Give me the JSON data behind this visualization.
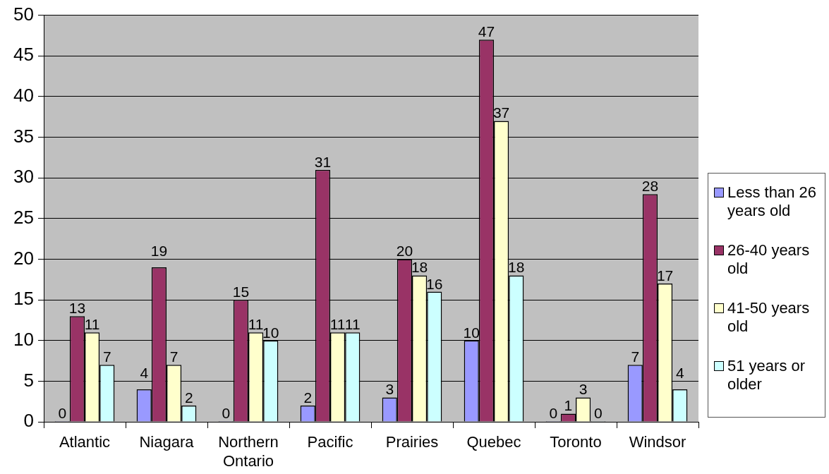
{
  "chart_data": {
    "type": "bar",
    "categories": [
      "Atlantic",
      "Niagara",
      "Northern Ontario",
      "Pacific",
      "Prairies",
      "Quebec",
      "Toronto",
      "Windsor"
    ],
    "series": [
      {
        "name": "Less than 26 years old",
        "color": "#9999ff",
        "values": [
          0,
          4,
          0,
          2,
          3,
          10,
          0,
          7
        ]
      },
      {
        "name": "26-40 years old",
        "color": "#993366",
        "values": [
          13,
          19,
          15,
          31,
          20,
          47,
          1,
          28
        ]
      },
      {
        "name": "41-50 years old",
        "color": "#ffffcc",
        "values": [
          11,
          7,
          11,
          11,
          18,
          37,
          3,
          17
        ]
      },
      {
        "name": "51 years or older",
        "color": "#ccffff",
        "values": [
          7,
          2,
          10,
          11,
          16,
          18,
          0,
          4
        ]
      }
    ],
    "ylim": [
      0,
      50
    ],
    "yticks": [
      0,
      5,
      10,
      15,
      20,
      25,
      30,
      35,
      40,
      45,
      50
    ],
    "grid": "y",
    "legend": "right",
    "data_labels": true
  }
}
